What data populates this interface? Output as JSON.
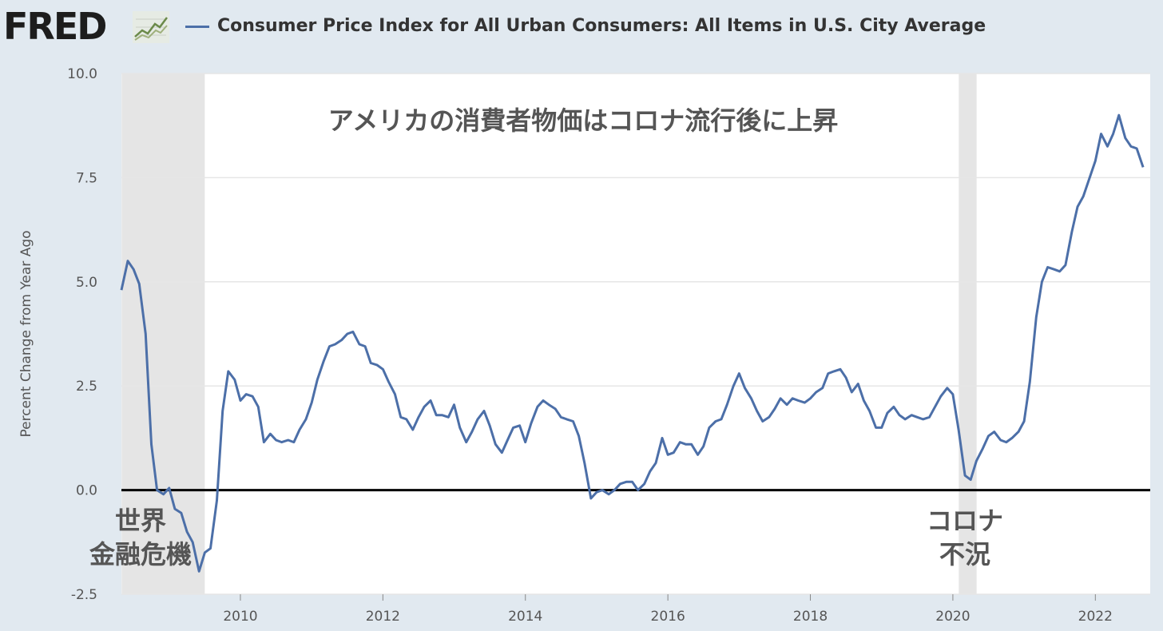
{
  "header": {
    "logo_text": "FRED",
    "logo_icon": "line-chart-icon",
    "series_title": "Consumer Price Index for All Urban Consumers: All Items in U.S. City Average",
    "line_color": "#4c6fa8"
  },
  "chart_data": {
    "type": "line",
    "title": "Consumer Price Index for All Urban Consumers: All Items in U.S. City Average",
    "annotation_title": "アメリカの消費者物価はコロナ流行後に上昇",
    "ylabel": "Percent Change from Year Ago",
    "xlabel": "",
    "ylim": [
      -2.5,
      10.0
    ],
    "xlim": [
      "2008-05",
      "2022-10"
    ],
    "y_ticks": [
      "10.0",
      "7.5",
      "5.0",
      "2.5",
      "0.0",
      "-2.5"
    ],
    "x_ticks": [
      "2010",
      "2012",
      "2014",
      "2016",
      "2018",
      "2020",
      "2022"
    ],
    "grid": "horizontal",
    "recessions": [
      {
        "start": "2008-05",
        "end": "2009-06",
        "label_lines": [
          "世界",
          "金融危機"
        ]
      },
      {
        "start": "2020-02",
        "end": "2020-04",
        "label_lines": [
          "コロナ",
          "不況"
        ]
      }
    ],
    "series": [
      {
        "values": [
          [
            2008.33,
            4.8
          ],
          [
            2008.42,
            5.5
          ],
          [
            2008.5,
            5.3
          ],
          [
            2008.58,
            4.95
          ],
          [
            2008.67,
            3.75
          ],
          [
            2008.75,
            1.1
          ],
          [
            2008.83,
            0.0
          ],
          [
            2008.92,
            -0.1
          ],
          [
            2009.0,
            0.05
          ],
          [
            2009.08,
            -0.45
          ],
          [
            2009.17,
            -0.55
          ],
          [
            2009.25,
            -1.0
          ],
          [
            2009.33,
            -1.25
          ],
          [
            2009.42,
            -1.95
          ],
          [
            2009.5,
            -1.5
          ],
          [
            2009.58,
            -1.4
          ],
          [
            2009.67,
            -0.25
          ],
          [
            2009.75,
            1.9
          ],
          [
            2009.83,
            2.85
          ],
          [
            2009.92,
            2.65
          ],
          [
            2010.0,
            2.15
          ],
          [
            2010.08,
            2.3
          ],
          [
            2010.17,
            2.25
          ],
          [
            2010.25,
            2.0
          ],
          [
            2010.33,
            1.15
          ],
          [
            2010.42,
            1.35
          ],
          [
            2010.5,
            1.2
          ],
          [
            2010.58,
            1.15
          ],
          [
            2010.67,
            1.2
          ],
          [
            2010.75,
            1.15
          ],
          [
            2010.83,
            1.45
          ],
          [
            2010.92,
            1.7
          ],
          [
            2011.0,
            2.1
          ],
          [
            2011.08,
            2.65
          ],
          [
            2011.17,
            3.1
          ],
          [
            2011.25,
            3.45
          ],
          [
            2011.33,
            3.5
          ],
          [
            2011.42,
            3.6
          ],
          [
            2011.5,
            3.75
          ],
          [
            2011.58,
            3.8
          ],
          [
            2011.67,
            3.5
          ],
          [
            2011.75,
            3.45
          ],
          [
            2011.83,
            3.05
          ],
          [
            2011.92,
            3.0
          ],
          [
            2012.0,
            2.9
          ],
          [
            2012.08,
            2.6
          ],
          [
            2012.17,
            2.3
          ],
          [
            2012.25,
            1.75
          ],
          [
            2012.33,
            1.7
          ],
          [
            2012.42,
            1.45
          ],
          [
            2012.5,
            1.75
          ],
          [
            2012.58,
            2.0
          ],
          [
            2012.67,
            2.15
          ],
          [
            2012.75,
            1.8
          ],
          [
            2012.83,
            1.8
          ],
          [
            2012.92,
            1.75
          ],
          [
            2013.0,
            2.05
          ],
          [
            2013.08,
            1.5
          ],
          [
            2013.17,
            1.15
          ],
          [
            2013.25,
            1.4
          ],
          [
            2013.33,
            1.7
          ],
          [
            2013.42,
            1.9
          ],
          [
            2013.5,
            1.55
          ],
          [
            2013.58,
            1.1
          ],
          [
            2013.67,
            0.9
          ],
          [
            2013.75,
            1.2
          ],
          [
            2013.83,
            1.5
          ],
          [
            2013.92,
            1.55
          ],
          [
            2014.0,
            1.15
          ],
          [
            2014.08,
            1.6
          ],
          [
            2014.17,
            2.0
          ],
          [
            2014.25,
            2.15
          ],
          [
            2014.33,
            2.05
          ],
          [
            2014.42,
            1.95
          ],
          [
            2014.5,
            1.75
          ],
          [
            2014.58,
            1.7
          ],
          [
            2014.67,
            1.65
          ],
          [
            2014.75,
            1.3
          ],
          [
            2014.83,
            0.65
          ],
          [
            2014.92,
            -0.2
          ],
          [
            2015.0,
            -0.05
          ],
          [
            2015.08,
            0.0
          ],
          [
            2015.17,
            -0.1
          ],
          [
            2015.25,
            0.0
          ],
          [
            2015.33,
            0.15
          ],
          [
            2015.42,
            0.2
          ],
          [
            2015.5,
            0.2
          ],
          [
            2015.58,
            0.0
          ],
          [
            2015.67,
            0.15
          ],
          [
            2015.75,
            0.45
          ],
          [
            2015.83,
            0.65
          ],
          [
            2015.92,
            1.25
          ],
          [
            2016.0,
            0.85
          ],
          [
            2016.08,
            0.9
          ],
          [
            2016.17,
            1.15
          ],
          [
            2016.25,
            1.1
          ],
          [
            2016.33,
            1.1
          ],
          [
            2016.42,
            0.85
          ],
          [
            2016.5,
            1.05
          ],
          [
            2016.58,
            1.5
          ],
          [
            2016.67,
            1.65
          ],
          [
            2016.75,
            1.7
          ],
          [
            2016.83,
            2.05
          ],
          [
            2016.92,
            2.5
          ],
          [
            2017.0,
            2.8
          ],
          [
            2017.08,
            2.45
          ],
          [
            2017.17,
            2.2
          ],
          [
            2017.25,
            1.9
          ],
          [
            2017.33,
            1.65
          ],
          [
            2017.42,
            1.75
          ],
          [
            2017.5,
            1.95
          ],
          [
            2017.58,
            2.2
          ],
          [
            2017.67,
            2.05
          ],
          [
            2017.75,
            2.2
          ],
          [
            2017.83,
            2.15
          ],
          [
            2017.92,
            2.1
          ],
          [
            2018.0,
            2.2
          ],
          [
            2018.08,
            2.35
          ],
          [
            2018.17,
            2.45
          ],
          [
            2018.25,
            2.8
          ],
          [
            2018.33,
            2.85
          ],
          [
            2018.42,
            2.9
          ],
          [
            2018.5,
            2.7
          ],
          [
            2018.58,
            2.35
          ],
          [
            2018.67,
            2.55
          ],
          [
            2018.75,
            2.15
          ],
          [
            2018.83,
            1.9
          ],
          [
            2018.92,
            1.5
          ],
          [
            2019.0,
            1.5
          ],
          [
            2019.08,
            1.85
          ],
          [
            2019.17,
            2.0
          ],
          [
            2019.25,
            1.8
          ],
          [
            2019.33,
            1.7
          ],
          [
            2019.42,
            1.8
          ],
          [
            2019.5,
            1.75
          ],
          [
            2019.58,
            1.7
          ],
          [
            2019.67,
            1.75
          ],
          [
            2019.75,
            2.0
          ],
          [
            2019.83,
            2.25
          ],
          [
            2019.92,
            2.45
          ],
          [
            2020.0,
            2.3
          ],
          [
            2020.08,
            1.45
          ],
          [
            2020.17,
            0.35
          ],
          [
            2020.25,
            0.25
          ],
          [
            2020.33,
            0.7
          ],
          [
            2020.42,
            1.0
          ],
          [
            2020.5,
            1.3
          ],
          [
            2020.58,
            1.4
          ],
          [
            2020.67,
            1.2
          ],
          [
            2020.75,
            1.15
          ],
          [
            2020.83,
            1.25
          ],
          [
            2020.92,
            1.4
          ],
          [
            2021.0,
            1.65
          ],
          [
            2021.08,
            2.6
          ],
          [
            2021.17,
            4.15
          ],
          [
            2021.25,
            5.0
          ],
          [
            2021.33,
            5.35
          ],
          [
            2021.42,
            5.3
          ],
          [
            2021.5,
            5.25
          ],
          [
            2021.58,
            5.4
          ],
          [
            2021.67,
            6.2
          ],
          [
            2021.75,
            6.8
          ],
          [
            2021.83,
            7.05
          ],
          [
            2021.92,
            7.5
          ],
          [
            2022.0,
            7.9
          ],
          [
            2022.08,
            8.55
          ],
          [
            2022.17,
            8.25
          ],
          [
            2022.25,
            8.55
          ],
          [
            2022.33,
            9.0
          ],
          [
            2022.42,
            8.45
          ],
          [
            2022.5,
            8.25
          ],
          [
            2022.58,
            8.2
          ],
          [
            2022.67,
            7.75
          ]
        ]
      }
    ]
  }
}
